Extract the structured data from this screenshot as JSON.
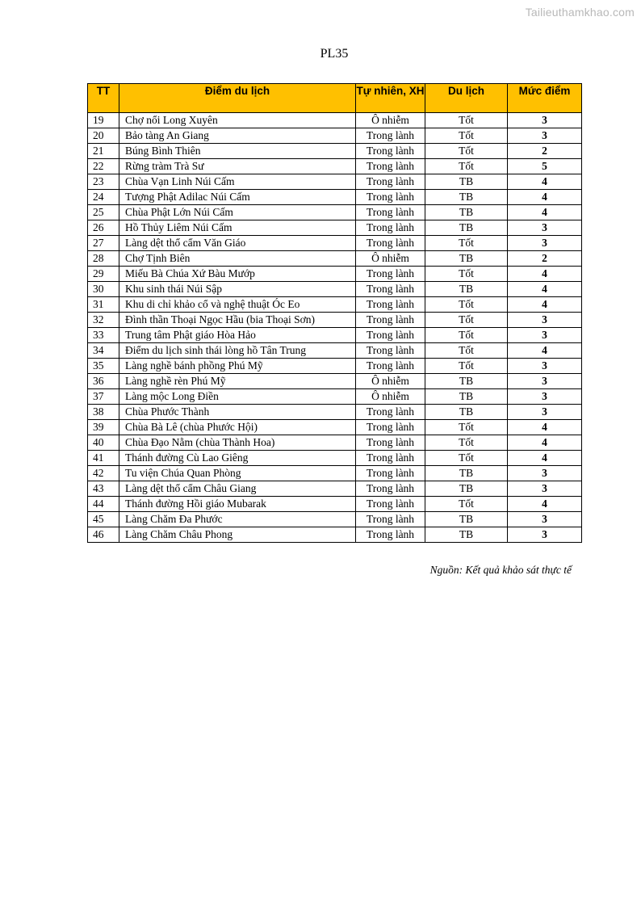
{
  "watermark": "Tailieuthamkhao.com",
  "title": "PL35",
  "table": {
    "headers": [
      "TT",
      "Điểm du lịch",
      "Tự nhiên, XH",
      "Du lịch",
      "Mức điểm"
    ],
    "rows": [
      [
        "19",
        "Chợ nổi Long Xuyên",
        "Ô nhiễm",
        "Tốt",
        "3"
      ],
      [
        "20",
        "Bảo tàng An Giang",
        "Trong lành",
        "Tốt",
        "3"
      ],
      [
        "21",
        "Búng  Bình  Thiên",
        "Trong lành",
        "Tốt",
        "2"
      ],
      [
        "22",
        "Rừng tràm Trà Sư",
        "Trong lành",
        "Tốt",
        "5"
      ],
      [
        "23",
        "Chùa Vạn Linh Núi Cấm",
        "Trong lành",
        "TB",
        "4"
      ],
      [
        "24",
        "Tượng Phật Adilac Núi Cấm",
        "Trong lành",
        "TB",
        "4"
      ],
      [
        "25",
        "Chùa Phật Lớn Núi Cấm",
        "Trong lành",
        "TB",
        "4"
      ],
      [
        "26",
        "Hồ Thủy Liêm Núi Cấm",
        "Trong lành",
        "TB",
        "3"
      ],
      [
        "27",
        "Làng dệt thổ cẩm Văn Giáo",
        "Trong lành",
        "Tốt",
        "3"
      ],
      [
        "28",
        "Chợ Tịnh Biên",
        "Ô nhiễm",
        "TB",
        "2"
      ],
      [
        "29",
        "Miếu Bà Chúa Xứ Bàu Mướp",
        "Trong lành",
        "Tốt",
        "4"
      ],
      [
        "30",
        "Khu sinh thái Núi Sập",
        "Trong lành",
        "TB",
        "4"
      ],
      [
        "31",
        "Khu di chỉ khảo cổ và nghệ thuật  Óc Eo",
        "Trong lành",
        "Tốt",
        "4"
      ],
      [
        "32",
        "Đình thần Thoại Ngọc Hầu (bia Thoại Sơn)",
        "Trong lành",
        "Tốt",
        "3"
      ],
      [
        "33",
        "Trung tâm Phật giáo Hòa Hảo",
        "Trong lành",
        "Tốt",
        "3"
      ],
      [
        "34",
        "Điểm du lịch sinh thái lòng hồ Tân Trung",
        "Trong lành",
        "Tốt",
        "4"
      ],
      [
        "35",
        "Làng nghề bánh phồng Phú Mỹ",
        "Trong lành",
        "Tốt",
        "3"
      ],
      [
        "36",
        "Làng nghề rèn Phú Mỹ",
        "Ô nhiễm",
        "TB",
        "3"
      ],
      [
        "37",
        "Làng mộc Long Điền",
        "Ô nhiễm",
        "TB",
        "3"
      ],
      [
        "38",
        "Chùa Phước Thành",
        "Trong lành",
        "TB",
        "3"
      ],
      [
        "39",
        "Chùa Bà Lê (chùa Phước Hội)",
        "Trong lành",
        "Tốt",
        "4"
      ],
      [
        "40",
        "Chùa Đạo Nằm (chùa Thành Hoa)",
        "Trong lành",
        "Tốt",
        "4"
      ],
      [
        "41",
        "Thánh đường Cù Lao Giêng",
        "Trong lành",
        "Tốt",
        "4"
      ],
      [
        "42",
        "Tu viện Chúa Quan Phòng",
        "Trong lành",
        "TB",
        "3"
      ],
      [
        "43",
        "Làng dệt thổ cẩm Châu Giang",
        "Trong lành",
        "TB",
        "3"
      ],
      [
        "44",
        "Thánh đường Hồi giáo Mubarak",
        "Trong lành",
        "Tốt",
        "4"
      ],
      [
        "45",
        "Làng Chăm Đa Phước",
        "Trong lành",
        "TB",
        "3"
      ],
      [
        "46",
        "Làng Chăm Châu Phong",
        "Trong lành",
        "TB",
        "3"
      ]
    ]
  },
  "source": "Nguồn: Kết quả khảo sát thực tế",
  "colors": {
    "header_bg": "#ffc000"
  }
}
